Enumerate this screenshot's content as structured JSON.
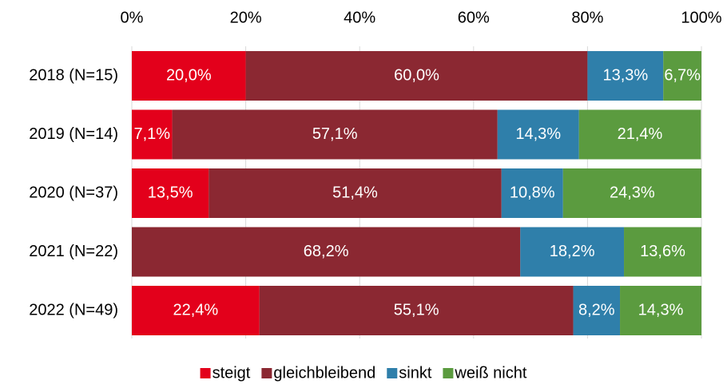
{
  "chart_data": {
    "type": "stacked_bar_horizontal",
    "categories": [
      "2018 (N=15)",
      "2019 (N=14)",
      "2020 (N=37)",
      "2021 (N=22)",
      "2022 (N=49)"
    ],
    "series": [
      {
        "name": "steigt",
        "color": "#e3001b",
        "values": [
          20.0,
          7.1,
          13.5,
          0,
          22.4
        ],
        "value_labels": [
          "20,0%",
          "7,1%",
          "13,5%",
          null,
          "22,4%"
        ]
      },
      {
        "name": "gleichbleibend",
        "color": "#8b2832",
        "values": [
          60.0,
          57.1,
          51.4,
          68.2,
          55.1
        ],
        "value_labels": [
          "60,0%",
          "57,1%",
          "51,4%",
          "68,2%",
          "55,1%"
        ]
      },
      {
        "name": "sinkt",
        "color": "#2f7faa",
        "values": [
          13.3,
          14.3,
          10.8,
          18.2,
          8.2
        ],
        "value_labels": [
          "13,3%",
          "14,3%",
          "10,8%",
          "18,2%",
          "8,2%"
        ]
      },
      {
        "name": "weiß nicht",
        "color": "#5b9b3f",
        "values": [
          6.7,
          21.4,
          24.3,
          13.6,
          14.3
        ],
        "value_labels": [
          "6,7%",
          "21,4%",
          "24,3%",
          "13,6%",
          "14,3%"
        ]
      }
    ],
    "xlim": [
      0,
      100
    ],
    "xticks": [
      {
        "value": 0,
        "label": "0%"
      },
      {
        "value": 20,
        "label": "20%"
      },
      {
        "value": 40,
        "label": "40%"
      },
      {
        "value": 60,
        "label": "60%"
      },
      {
        "value": 80,
        "label": "80%"
      },
      {
        "value": 100,
        "label": "100%"
      }
    ],
    "grid": true,
    "legend": "bottom"
  }
}
